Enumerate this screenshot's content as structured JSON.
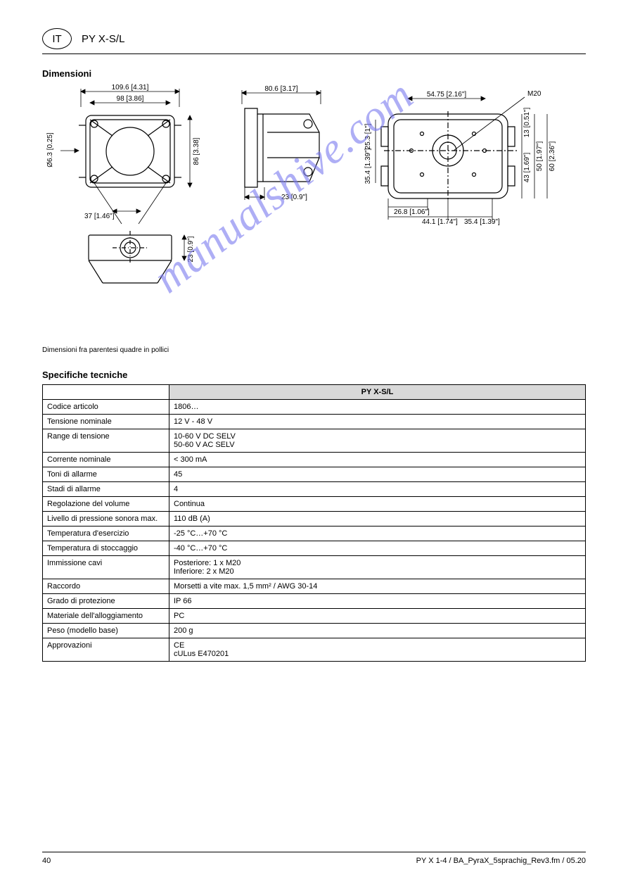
{
  "header": {
    "lang": "IT",
    "model": "PY X-S/L",
    "dims_in_brackets": "Dimensioni fra parentesi quadre in pollici"
  },
  "sections": {
    "dimensions_title": "Dimensioni",
    "specs_title": "Specifiche tecniche"
  },
  "diagrams": {
    "front": {
      "w_outer": "109.6 [4.31]",
      "w_inner": "98 [3.86]",
      "h": "86 [3.38]",
      "hole_dia": "Ø6.3 [0.25]",
      "offset": "37 [1.46\"]"
    },
    "side": {
      "depth": "80.6 [3.17]",
      "base_d": "23 [0.9\"]"
    },
    "bottom": {
      "sounder_h": "23 [0.9\"]"
    },
    "back": {
      "note": "M20",
      "a": "54.75 [2.16\"]",
      "b": "25.3 [1\"]",
      "c": "35.4 [1.39\"]",
      "d": "26.8 [1.06\"]",
      "e": "44.1 [1.74\"]",
      "f": "35.4 [1.39\"]",
      "g": "13 [0.51\"]",
      "h": "43 [1.69\"]",
      "i": "50 [1.97\"]",
      "j": "60 [2.36\"]"
    }
  },
  "specs": {
    "model_header": "PY X-S/L",
    "rows": [
      {
        "param": "Codice articolo",
        "value": "1806…"
      },
      {
        "param": "Tensione nominale",
        "value": "12 V - 48 V"
      },
      {
        "param": "Range di tensione",
        "value": "10-60 V DC SELV\n50-60 V AC SELV"
      },
      {
        "param": "Corrente nominale",
        "value": "< 300 mA"
      },
      {
        "param": "Toni di allarme",
        "value": "45"
      },
      {
        "param": "Stadi di allarme",
        "value": "4"
      },
      {
        "param": "Regolazione del volume",
        "value": "Continua"
      },
      {
        "param": "Livello di pressione sonora max.",
        "value": "110 dB (A)"
      },
      {
        "param": "Temperatura d'esercizio",
        "value": "-25 °C…+70 °C"
      },
      {
        "param": "Temperatura di stoccaggio",
        "value": "-40 °C…+70 °C"
      },
      {
        "param": "Immissione cavi",
        "value": "Posteriore: 1 x M20\nInferiore: 2 x M20"
      },
      {
        "param": "Raccordo",
        "value": "Morsetti a vite max. 1,5 mm² / AWG 30-14"
      },
      {
        "param": "Grado di protezione",
        "value": "IP 66"
      },
      {
        "param": "Materiale dell'alloggiamento",
        "value": "PC"
      },
      {
        "param": "Peso (modello base)",
        "value": "200 g"
      },
      {
        "param": "Approvazioni",
        "value": "CE\ncULus E470201"
      }
    ]
  },
  "footer": {
    "page": "40",
    "right": "PY X 1-4 / BA_PyraX_5sprachig_Rev3.fm / 05.20"
  },
  "colors": {
    "watermark": "#7a7af0",
    "header_bg": "#d9d9d9",
    "border": "#000000",
    "text": "#000000",
    "page_bg": "#ffffff"
  },
  "watermark_text": "manualshive.com"
}
